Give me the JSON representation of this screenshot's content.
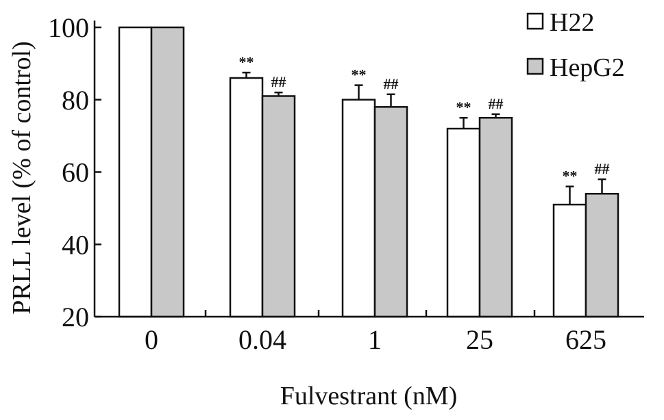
{
  "chart_data": {
    "type": "bar",
    "categories": [
      "0",
      "0.04",
      "1",
      "25",
      "625"
    ],
    "series": [
      {
        "name": "H22",
        "values": [
          100,
          86,
          80,
          72,
          51
        ],
        "errors": [
          0,
          1.5,
          4,
          3,
          5
        ],
        "significance": [
          "",
          "**",
          "**",
          "**",
          "**"
        ],
        "fill": "#ffffff"
      },
      {
        "name": "HepG2",
        "values": [
          100,
          81,
          78,
          75,
          54
        ],
        "errors": [
          0,
          1,
          3.5,
          1,
          4
        ],
        "significance": [
          "",
          "##",
          "##",
          "##",
          "##"
        ],
        "fill": "#c8c8c8"
      }
    ],
    "xlabel": "Fulvestrant (nM)",
    "ylabel": "PRLL level (% of control)",
    "ylim": [
      20,
      100
    ],
    "yticks": [
      20,
      40,
      60,
      80,
      100
    ],
    "grid": false,
    "legend_position": "top-right"
  }
}
